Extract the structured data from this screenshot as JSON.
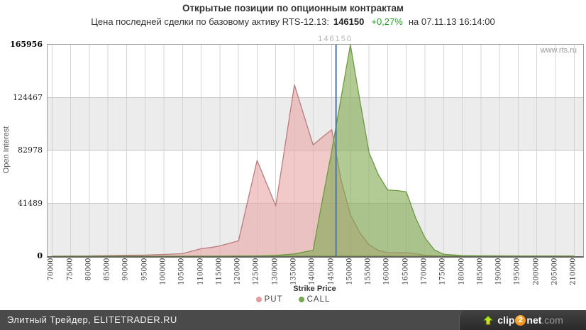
{
  "title": "Открытые позиции по опционным контрактам",
  "subtitle": {
    "prefix": "Цена последней сделки по базовому активу RTS-12.13:",
    "price": "146150",
    "change": "+0,27%",
    "suffix": "на 07.11.13 16:14:00"
  },
  "watermark": "www.rts.ru",
  "chart_data": {
    "type": "area",
    "xlabel": "Strike Price",
    "ylabel": "Open Interest",
    "xlim": [
      70000,
      210000
    ],
    "ylim": [
      0,
      165956
    ],
    "yticks": [
      0,
      41489,
      82978,
      124467,
      165956
    ],
    "xticks": [
      70000,
      75000,
      80000,
      85000,
      90000,
      95000,
      100000,
      105000,
      110000,
      115000,
      120000,
      125000,
      130000,
      135000,
      140000,
      145000,
      150000,
      155000,
      160000,
      165000,
      170000,
      175000,
      180000,
      185000,
      190000,
      195000,
      200000,
      205000,
      210000
    ],
    "grid": true,
    "band_color": "#ececec",
    "grid_color": "#d4d4d4",
    "legend_position": "bottom",
    "price_line": {
      "x": 146150,
      "label": "146150",
      "color": "#4576ad"
    },
    "series": [
      {
        "name": "PUT",
        "fill": "#e8a8a8",
        "fill_opacity": 0.62,
        "line": "#b97c7c",
        "dot": "#e39b9b",
        "points": [
          [
            70000,
            0
          ],
          [
            75000,
            100
          ],
          [
            80000,
            250
          ],
          [
            85000,
            450
          ],
          [
            90000,
            700
          ],
          [
            95000,
            900
          ],
          [
            100000,
            1400
          ],
          [
            105000,
            2000
          ],
          [
            110000,
            5900
          ],
          [
            112500,
            6800
          ],
          [
            115000,
            8100
          ],
          [
            120000,
            12100
          ],
          [
            125000,
            75200
          ],
          [
            130000,
            39500
          ],
          [
            135000,
            134500
          ],
          [
            140000,
            87300
          ],
          [
            142500,
            93500
          ],
          [
            145000,
            99300
          ],
          [
            147500,
            60000
          ],
          [
            150000,
            32500
          ],
          [
            152500,
            18500
          ],
          [
            155000,
            9000
          ],
          [
            157500,
            4500
          ],
          [
            160000,
            2800
          ],
          [
            162500,
            2600
          ],
          [
            165000,
            2800
          ],
          [
            167500,
            2000
          ],
          [
            170000,
            800
          ],
          [
            175000,
            250
          ],
          [
            180000,
            150
          ],
          [
            185000,
            100
          ],
          [
            190000,
            80
          ],
          [
            195000,
            60
          ],
          [
            200000,
            50
          ],
          [
            205000,
            40
          ],
          [
            210000,
            30
          ]
        ]
      },
      {
        "name": "CALL",
        "fill": "#7fa84f",
        "fill_opacity": 0.6,
        "line": "#6d9a42",
        "dot": "#76a851",
        "points": [
          [
            70000,
            0
          ],
          [
            75000,
            0
          ],
          [
            80000,
            0
          ],
          [
            85000,
            0
          ],
          [
            90000,
            0
          ],
          [
            95000,
            0
          ],
          [
            100000,
            0
          ],
          [
            105000,
            0
          ],
          [
            110000,
            50
          ],
          [
            115000,
            80
          ],
          [
            120000,
            150
          ],
          [
            125000,
            300
          ],
          [
            130000,
            600
          ],
          [
            135000,
            1800
          ],
          [
            140000,
            4600
          ],
          [
            142500,
            44000
          ],
          [
            145000,
            82600
          ],
          [
            147500,
            124000
          ],
          [
            150000,
            165956
          ],
          [
            152500,
            123000
          ],
          [
            155000,
            81300
          ],
          [
            157500,
            64000
          ],
          [
            160000,
            52000
          ],
          [
            162500,
            51500
          ],
          [
            165000,
            50500
          ],
          [
            167500,
            30000
          ],
          [
            170000,
            14500
          ],
          [
            172500,
            5000
          ],
          [
            175000,
            1500
          ],
          [
            180000,
            500
          ],
          [
            185000,
            350
          ],
          [
            190000,
            300
          ],
          [
            195000,
            250
          ],
          [
            200000,
            200
          ],
          [
            205000,
            150
          ],
          [
            210000,
            120
          ]
        ]
      }
    ]
  },
  "footer": {
    "left_text": "Элитный Трейдер, ELITETRADER.RU",
    "logo": {
      "clip": "clip",
      "two": "2",
      "net": "net",
      "com": ".com"
    }
  }
}
